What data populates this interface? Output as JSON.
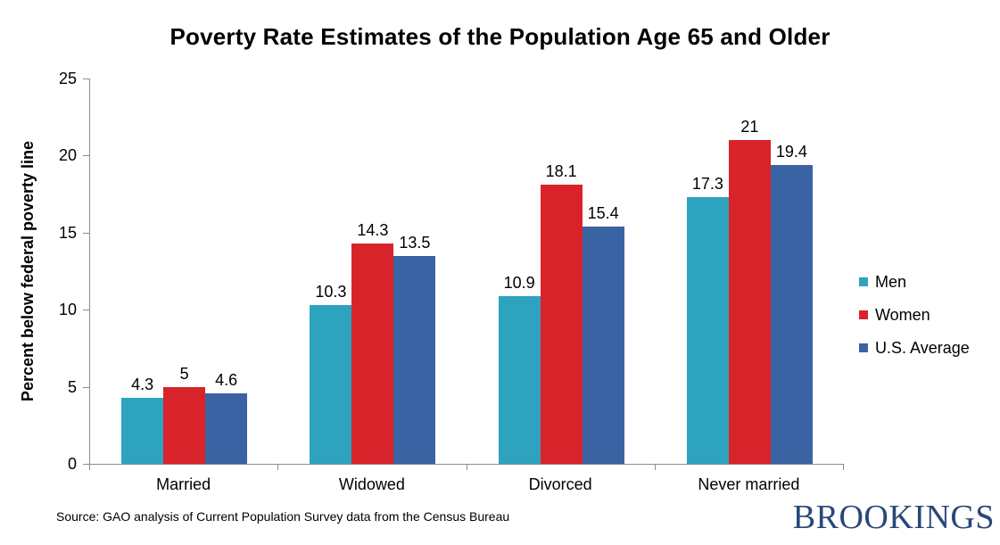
{
  "title": "Poverty Rate Estimates of the Population Age 65 and Older",
  "chart_data": {
    "type": "bar",
    "title": "Poverty Rate Estimates of the Population Age 65 and Older",
    "xlabel": "",
    "ylabel": "Percent below federal poverty line",
    "categories": [
      "Married",
      "Widowed",
      "Divorced",
      "Never married"
    ],
    "series": [
      {
        "name": "Men",
        "color": "#2EA3BF",
        "values": [
          4.3,
          10.3,
          10.9,
          17.3
        ]
      },
      {
        "name": "Women",
        "color": "#D9232B",
        "values": [
          5,
          14.3,
          18.1,
          21
        ]
      },
      {
        "name": "U.S. Average",
        "color": "#3A63A4",
        "values": [
          4.6,
          13.5,
          15.4,
          19.4
        ]
      }
    ],
    "ylim": [
      0,
      25
    ],
    "yticks": [
      0,
      5,
      10,
      15,
      20,
      25
    ],
    "grid": false,
    "legend_position": "right",
    "value_labels_shown": true
  },
  "source_note": "Source: GAO analysis of Current Population Survey data from the Census Bureau",
  "branding": {
    "logo_text": "BROOKINGS",
    "logo_color": "#284879"
  },
  "colors": {
    "axis": "#8C8C8C",
    "background": "#FFFFFF",
    "text": "#000000"
  }
}
